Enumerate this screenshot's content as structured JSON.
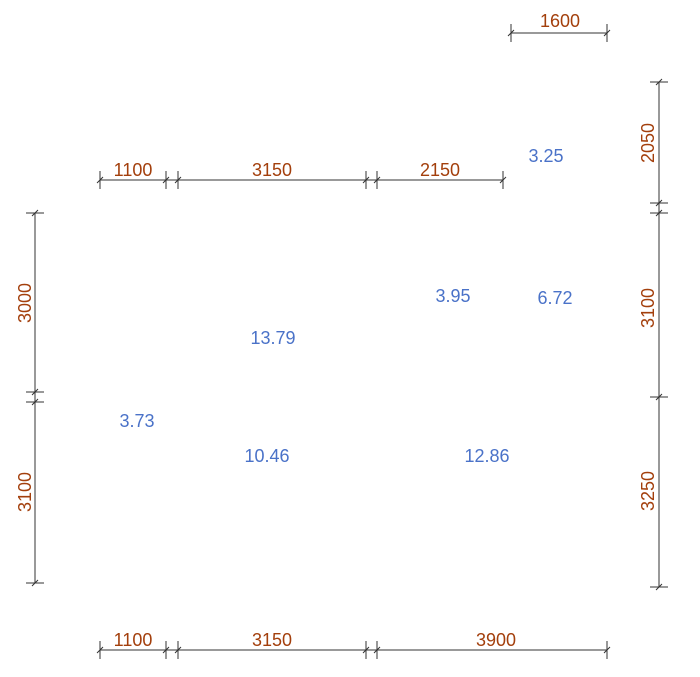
{
  "dimensions": {
    "top": [
      1600
    ],
    "upper": [
      1100,
      3150,
      2150
    ],
    "bottom": [
      1100,
      3150,
      3900
    ],
    "left": [
      3000,
      3100
    ],
    "right": [
      2050,
      3100,
      3250
    ]
  },
  "areas": [
    3.25,
    3.95,
    6.72,
    13.79,
    3.73,
    10.46,
    12.86
  ]
}
